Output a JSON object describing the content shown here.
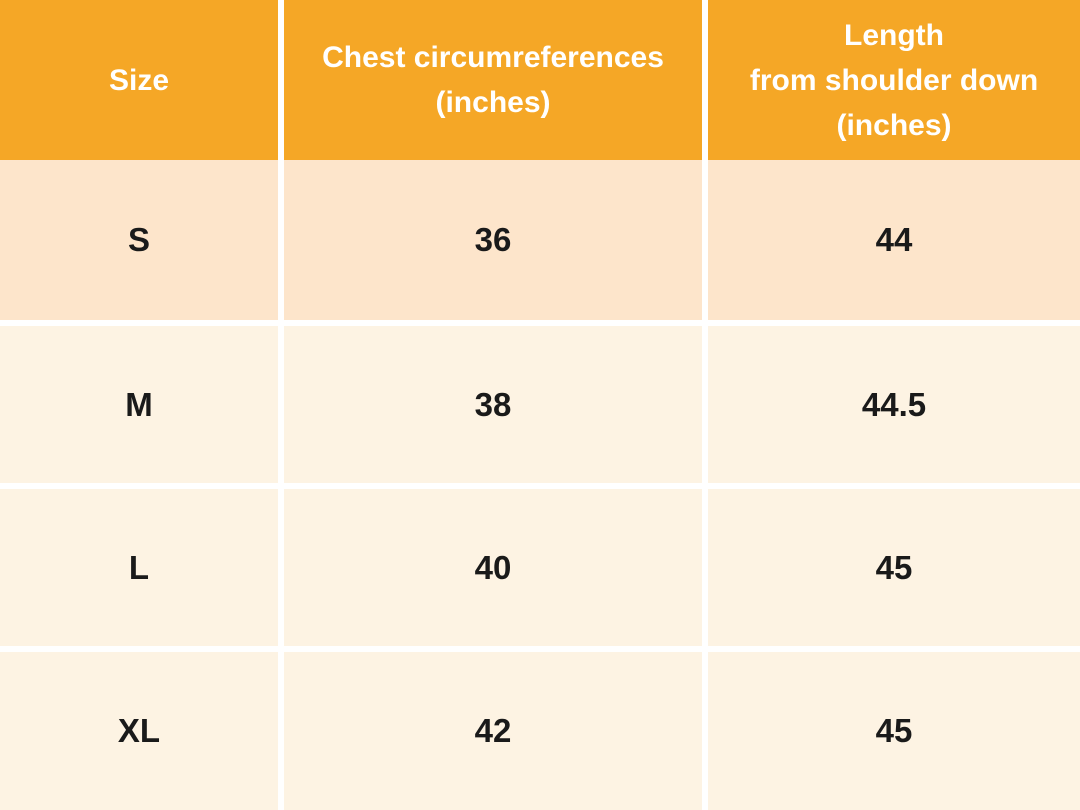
{
  "table": {
    "header": [
      {
        "lines": [
          "Size"
        ]
      },
      {
        "lines": [
          "Chest circumreferences",
          "(inches)"
        ]
      },
      {
        "lines": [
          "Length",
          "from shoulder down",
          "(inches)"
        ]
      }
    ],
    "rows": [
      {
        "size": "S",
        "chest": "36",
        "length": "44"
      },
      {
        "size": "M",
        "chest": "38",
        "length": "44.5"
      },
      {
        "size": "L",
        "chest": "40",
        "length": "45"
      },
      {
        "size": "XL",
        "chest": "42",
        "length": "45"
      }
    ]
  },
  "colors": {
    "header_bg": "#F5A726",
    "row_alt_bg": "#FDE5CB",
    "row_bg": "#FDF3E3",
    "grid": "#FFFFFF",
    "header_text": "#FFFFFF",
    "body_text": "#1A1A1A"
  },
  "chart_data": {
    "type": "table",
    "title": "Garment size chart",
    "columns": [
      "Size",
      "Chest circumreferences (inches)",
      "Length from shoulder down (inches)"
    ],
    "rows": [
      [
        "S",
        36,
        44
      ],
      [
        "M",
        38,
        44.5
      ],
      [
        "L",
        40,
        45
      ],
      [
        "XL",
        42,
        45
      ]
    ]
  }
}
